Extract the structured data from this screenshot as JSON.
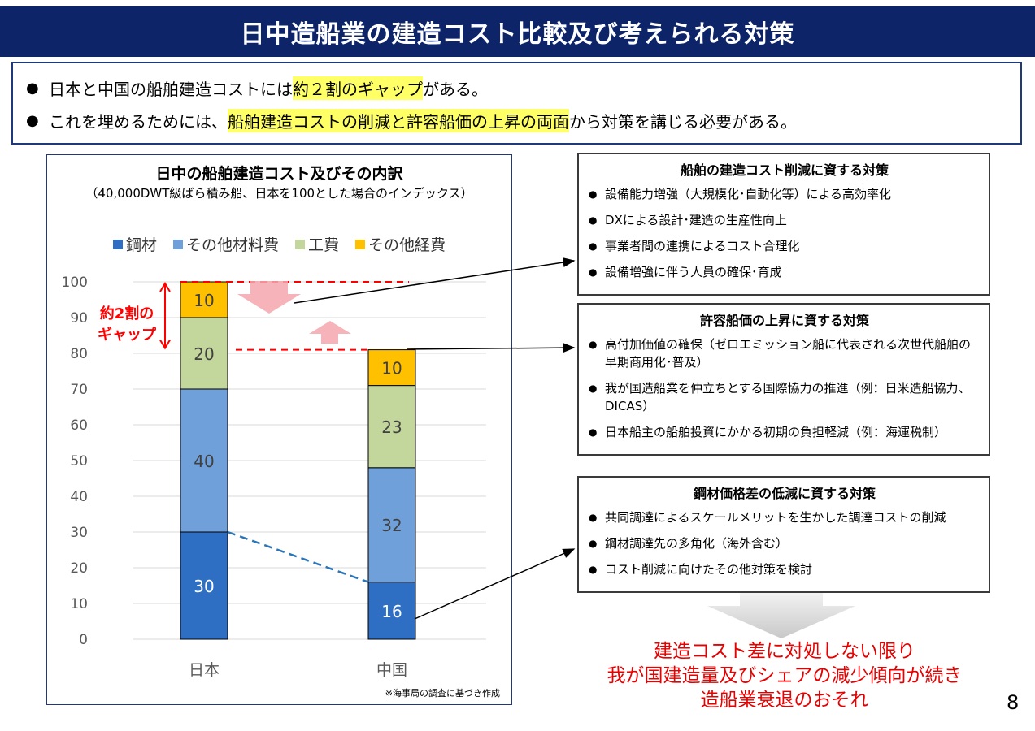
{
  "header": {
    "title": "日中造船業の建造コスト比較及び考えられる対策"
  },
  "summary": {
    "lines": [
      {
        "before": "日本と中国の船舶建造コストには",
        "highlight": "約２割のギャップ",
        "after": "がある。"
      },
      {
        "before": "これを埋めるためには、",
        "highlight": "船舶建造コストの削減と許容船価の上昇の両面",
        "after": "から対策を講じる必要がある。"
      }
    ]
  },
  "chart": {
    "note": "※海事局の調査に基づき作成",
    "gap_label_line1": "約2割の",
    "gap_label_line2": "ギャップ"
  },
  "chart_data": {
    "type": "bar",
    "stacked": true,
    "title": "日中の船舶建造コスト及びその内訳",
    "subtitle": "（40,000DWT級ばら積み船、日本を100とした場合のインデックス）",
    "categories": [
      "日本",
      "中国"
    ],
    "series": [
      {
        "name": "鋼材",
        "color": "#2e6fc4",
        "values": [
          30,
          16
        ]
      },
      {
        "name": "その他材料費",
        "color": "#6fa0da",
        "values": [
          40,
          32
        ]
      },
      {
        "name": "工費",
        "color": "#c3d69b",
        "values": [
          20,
          23
        ]
      },
      {
        "name": "その他経費",
        "color": "#ffc000",
        "values": [
          10,
          10
        ]
      }
    ],
    "ylim": [
      0,
      100
    ],
    "yticks": [
      0,
      10,
      20,
      30,
      40,
      50,
      60,
      70,
      80,
      90,
      100
    ],
    "grid": true,
    "legend": "top"
  },
  "panels": [
    {
      "title": "船舶の建造コスト削減に資する対策",
      "items": [
        "設備能力増強（大規模化･自動化等）による高効率化",
        "DXによる設計･建造の生産性向上",
        "事業者間の連携によるコスト合理化",
        "設備増強に伴う人員の確保･育成"
      ]
    },
    {
      "title": "許容船価の上昇に資する対策",
      "items": [
        "高付加価値の確保（ゼロエミッション船に代表される次世代船舶の早期商用化･普及）",
        "我が国造船業を仲立ちとする国際協力の推進（例：日米造船協力、DICAS）",
        "日本船主の船舶投資にかかる初期の負担軽減（例：海運税制）"
      ]
    },
    {
      "title": "鋼材価格差の低減に資する対策",
      "items": [
        "共同調達によるスケールメリットを生かした調達コストの削減",
        "鋼材調達先の多角化（海外含む）",
        "コスト削減に向けたその他対策を検討"
      ]
    }
  ],
  "warning": {
    "line1": "建造コスト差に対処しない限り",
    "line2": "我が国建造量及びシェアの減少傾向が続き",
    "line3": "造船業衰退のおそれ"
  },
  "page_number": "8",
  "bullet": "●",
  "legend_marker": "■"
}
